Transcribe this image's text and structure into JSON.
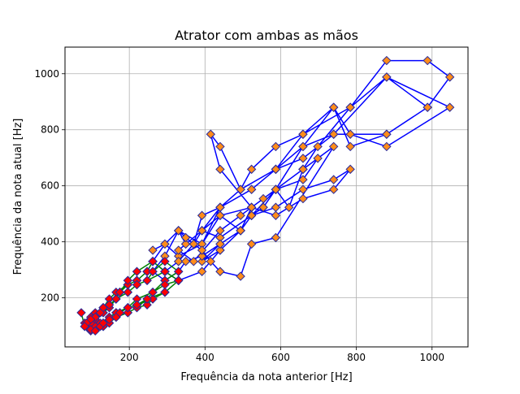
{
  "chart_data": {
    "type": "line",
    "title": "Atrator com ambas as mãos",
    "xlabel": "Frequência da nota anterior [Hz]",
    "ylabel": "Frequência da nota atual [Hz]",
    "xlim": [
      30,
      1095
    ],
    "ylim": [
      25,
      1095
    ],
    "xticks": [
      200,
      400,
      600,
      800,
      1000
    ],
    "yticks": [
      200,
      400,
      600,
      800,
      1000
    ],
    "grid": true,
    "colors": {
      "series_1_line": "#0000ff",
      "series_1_marker": "#ff8c1a",
      "series_1_marker_edge": "#2a2a9a",
      "series_2_line": "#008000",
      "series_2_marker": "#ff0000",
      "series_2_marker_edge": "#2a2a9a"
    },
    "series": [
      {
        "marker": "diamond",
        "x": [
          262,
          294,
          330,
          349,
          392,
          440,
          494,
          523,
          587,
          659,
          698,
          784,
          880,
          988,
          1047,
          988,
          880,
          784,
          740,
          659,
          587,
          523,
          494,
          440,
          392,
          370,
          330,
          294,
          262,
          294,
          330,
          392,
          440,
          523,
          587,
          659,
          740,
          784,
          880,
          1047,
          880,
          784,
          659,
          587,
          494,
          440,
          415,
          440,
          523,
          587,
          659,
          740,
          784,
          740,
          659,
          587,
          523,
          440,
          392,
          349,
          330,
          370,
          440,
          494,
          554,
          587,
          622,
          659,
          587,
          523,
          494,
          440,
          392,
          440,
          494,
          523,
          587,
          659,
          740,
          880,
          988,
          880,
          740,
          659,
          587,
          523,
          440,
          392,
          370,
          330,
          294,
          330,
          392,
          440,
          494,
          523,
          554,
          587,
          659,
          698,
          659,
          587,
          523,
          440,
          392,
          330,
          294,
          262,
          294,
          330,
          349,
          392,
          440,
          494,
          523,
          554,
          587,
          659,
          740,
          587,
          523,
          494,
          440,
          415,
          392,
          370,
          349,
          330
        ],
        "y": [
          370,
          392,
          440,
          392,
          440,
          494,
          440,
          523,
          587,
          659,
          740,
          880,
          1047,
          1047,
          988,
          880,
          784,
          740,
          880,
          784,
          740,
          659,
          587,
          523,
          494,
          392,
          330,
          294,
          330,
          392,
          349,
          392,
          523,
          587,
          659,
          740,
          880,
          784,
          740,
          880,
          988,
          880,
          784,
          659,
          587,
          740,
          784,
          659,
          523,
          494,
          554,
          587,
          659,
          622,
          587,
          523,
          494,
          415,
          440,
          392,
          370,
          330,
          440,
          494,
          554,
          587,
          523,
          659,
          587,
          523,
          440,
          392,
          330,
          370,
          440,
          494,
          587,
          740,
          784,
          784,
          880,
          988,
          784,
          698,
          659,
          587,
          523,
          440,
          392,
          330,
          294,
          262,
          294,
          370,
          440,
          494,
          523,
          587,
          659,
          698,
          622,
          587,
          523,
          494,
          392,
          440,
          349,
          294,
          262,
          294,
          330,
          349,
          392,
          440,
          494,
          523,
          587,
          659,
          740,
          415,
          392,
          277,
          294,
          330,
          370,
          392,
          415,
          440
        ]
      },
      {
        "marker": "diamond",
        "x": [
          73,
          82,
          87,
          98,
          110,
          123,
          131,
          147,
          165,
          175,
          196,
          220,
          247,
          262,
          294,
          330,
          294,
          262,
          247,
          220,
          196,
          165,
          147,
          131,
          110,
          98,
          87,
          82,
          98,
          110,
          131,
          147,
          165,
          196,
          220,
          247,
          262,
          294,
          330,
          294,
          262,
          220,
          196,
          165,
          147,
          123,
          110,
          98,
          110,
          131,
          147,
          165,
          175,
          196,
          220,
          247,
          262,
          294,
          330,
          294,
          247,
          220,
          196,
          165,
          147,
          131,
          110,
          123,
          147,
          165,
          196,
          220,
          247,
          262,
          294,
          330,
          294,
          262,
          220,
          196,
          165,
          147,
          131,
          110,
          98,
          110,
          131,
          147,
          165,
          196,
          220,
          247,
          294,
          262,
          220,
          196,
          175,
          165,
          147,
          131,
          123,
          110,
          98,
          87,
          82,
          98,
          110,
          123,
          131,
          147,
          165,
          175,
          196,
          220,
          247,
          262,
          294,
          330,
          294,
          262
        ],
        "y": [
          147,
          98,
          110,
          123,
          131,
          147,
          165,
          175,
          196,
          220,
          247,
          262,
          294,
          330,
          294,
          262,
          220,
          196,
          175,
          165,
          147,
          131,
          110,
          98,
          87,
          82,
          98,
          110,
          131,
          147,
          165,
          196,
          220,
          247,
          262,
          294,
          330,
          294,
          262,
          220,
          196,
          175,
          165,
          147,
          131,
          110,
          98,
          110,
          123,
          147,
          165,
          196,
          220,
          247,
          262,
          294,
          330,
          294,
          262,
          220,
          196,
          165,
          147,
          131,
          110,
          98,
          123,
          147,
          165,
          196,
          220,
          247,
          262,
          294,
          330,
          294,
          262,
          220,
          196,
          165,
          147,
          131,
          110,
          98,
          110,
          131,
          147,
          165,
          196,
          220,
          247,
          262,
          294,
          330,
          294,
          262,
          220,
          196,
          175,
          165,
          147,
          131,
          123,
          110,
          98,
          87,
          82,
          98,
          110,
          123,
          131,
          147,
          165,
          175,
          196,
          220,
          247,
          262,
          294,
          330
        ]
      }
    ]
  }
}
